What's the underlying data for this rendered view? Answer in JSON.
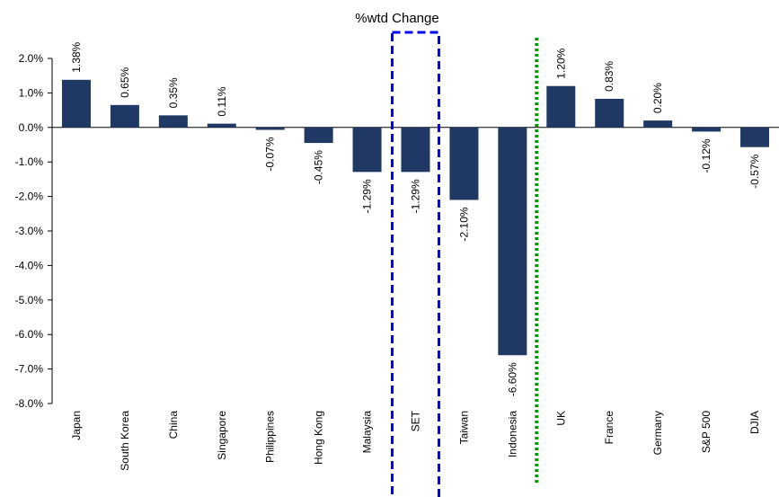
{
  "chart_data": {
    "type": "bar",
    "title": "%wtd Change",
    "xlabel": "",
    "ylabel": "",
    "ylim": [
      -8.0,
      2.0
    ],
    "yticks": [
      "2.0%",
      "1.0%",
      "0.0%",
      "-1.0%",
      "-2.0%",
      "-3.0%",
      "-4.0%",
      "-5.0%",
      "-6.0%",
      "-7.0%",
      "-8.0%"
    ],
    "categories": [
      "Japan",
      "South Korea",
      "China",
      "Singapore",
      "Philippines",
      "Hong Kong",
      "Malaysia",
      "SET",
      "Taiwan",
      "Indonesia",
      "UK",
      "France",
      "Germany",
      "S&P 500",
      "DJIA"
    ],
    "values": [
      1.38,
      0.65,
      0.35,
      0.11,
      -0.07,
      -0.45,
      -1.29,
      -1.29,
      -2.1,
      -6.6,
      1.2,
      0.83,
      0.2,
      -0.12,
      -0.57
    ],
    "data_labels": [
      "1.38%",
      "0.65%",
      "0.35%",
      "0.11%",
      "-0.07%",
      "-0.45%",
      "-1.29%",
      "-1.29%",
      "-2.10%",
      "-6.60%",
      "1.20%",
      "0.83%",
      "0.20%",
      "-0.12%",
      "-0.57%"
    ],
    "grid": false,
    "legend": "none",
    "bar_color": "#1f3864",
    "highlight_category": "SET",
    "highlight_color": "#0000ff",
    "divider_after_category": "Indonesia",
    "divider_color": "#009900"
  }
}
